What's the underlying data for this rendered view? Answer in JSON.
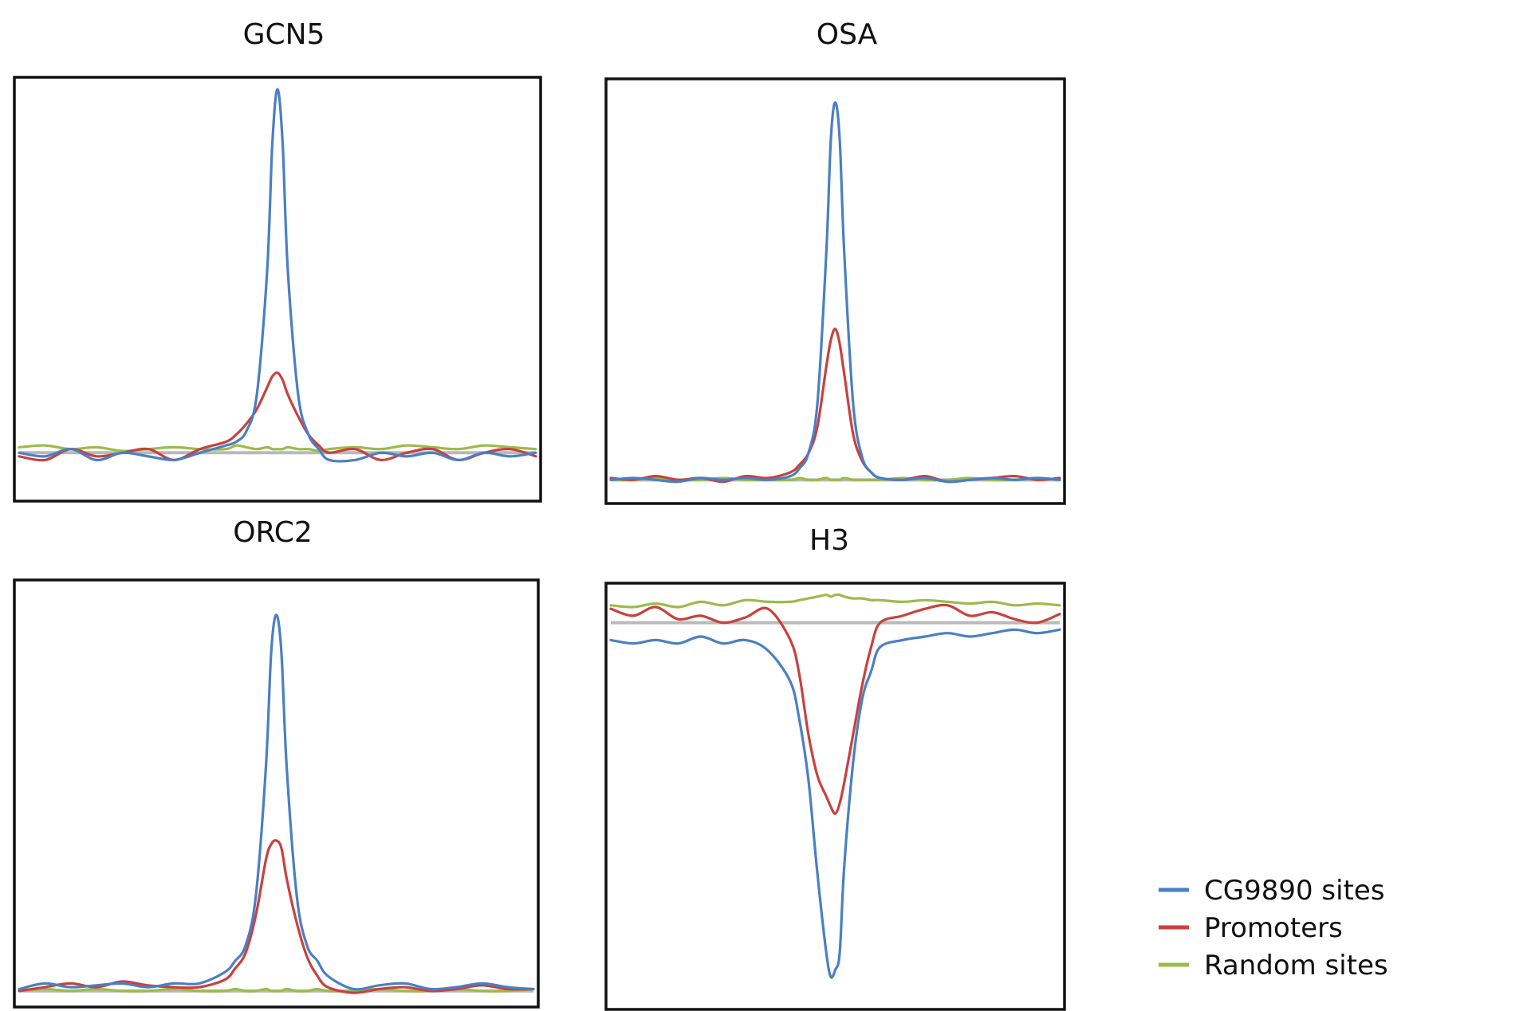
{
  "legend": {
    "items": [
      {
        "label": "CG9890 sites",
        "color": "#4a7fc4"
      },
      {
        "label": "Promoters",
        "color": "#c8413e"
      },
      {
        "label": "Random sites",
        "color": "#9bbb4a"
      }
    ]
  },
  "chart_data": [
    {
      "type": "line",
      "title": "GCN5",
      "xlabel": "",
      "ylabel": "",
      "ylim": [
        -0.12,
        1.02
      ],
      "grid": false,
      "x": [
        -50,
        -45,
        -40,
        -35,
        -30,
        -25,
        -20,
        -15,
        -10,
        -8,
        -6,
        -4,
        -2,
        -1,
        0,
        1,
        2,
        4,
        6,
        8,
        10,
        15,
        20,
        25,
        30,
        35,
        40,
        45,
        50
      ],
      "series": [
        {
          "name": "CG9890 sites",
          "values": [
            0.0,
            -0.01,
            0.01,
            -0.02,
            0.0,
            -0.01,
            -0.02,
            0.0,
            0.02,
            0.03,
            0.06,
            0.16,
            0.5,
            0.85,
            1.0,
            0.85,
            0.5,
            0.16,
            0.05,
            0.01,
            -0.02,
            -0.02,
            0.0,
            -0.01,
            0.0,
            -0.02,
            0.0,
            -0.01,
            0.0
          ]
        },
        {
          "name": "Promoters",
          "values": [
            -0.01,
            -0.02,
            0.01,
            -0.01,
            0.0,
            0.01,
            -0.02,
            0.01,
            0.03,
            0.05,
            0.08,
            0.12,
            0.18,
            0.21,
            0.22,
            0.2,
            0.16,
            0.1,
            0.05,
            0.02,
            0.0,
            0.01,
            -0.02,
            0.0,
            0.01,
            -0.02,
            0.0,
            0.01,
            -0.01
          ]
        },
        {
          "name": "Random sites",
          "values": [
            0.015,
            0.02,
            0.01,
            0.015,
            0.005,
            0.01,
            0.015,
            0.01,
            0.01,
            0.02,
            0.015,
            0.01,
            0.015,
            0.01,
            0.01,
            0.01,
            0.015,
            0.01,
            0.01,
            0.005,
            0.01,
            0.015,
            0.01,
            0.02,
            0.015,
            0.01,
            0.02,
            0.015,
            0.01
          ]
        }
      ]
    },
    {
      "type": "line",
      "title": "OSA",
      "xlabel": "",
      "ylabel": "",
      "ylim": [
        -0.05,
        1.05
      ],
      "grid": false,
      "x": [
        -50,
        -45,
        -40,
        -35,
        -30,
        -25,
        -20,
        -15,
        -10,
        -8,
        -6,
        -4,
        -2,
        -1,
        0,
        1,
        2,
        4,
        6,
        8,
        10,
        15,
        20,
        25,
        30,
        35,
        40,
        45,
        50
      ],
      "series": [
        {
          "name": "CG9890 sites",
          "values": [
            0.0,
            0.005,
            0.0,
            -0.005,
            0.005,
            0.0,
            0.005,
            0.0,
            0.01,
            0.03,
            0.07,
            0.2,
            0.6,
            0.9,
            1.0,
            0.9,
            0.6,
            0.2,
            0.06,
            0.02,
            0.005,
            0.0,
            0.005,
            -0.005,
            0.0,
            0.005,
            0.0,
            0.005,
            0.0
          ]
        },
        {
          "name": "Promoters",
          "values": [
            0.005,
            0.0,
            0.01,
            0.0,
            0.005,
            -0.005,
            0.01,
            0.005,
            0.02,
            0.04,
            0.07,
            0.14,
            0.3,
            0.37,
            0.4,
            0.36,
            0.28,
            0.12,
            0.05,
            0.02,
            0.005,
            0.0,
            0.01,
            -0.005,
            0.0,
            0.005,
            0.01,
            0.0,
            0.005
          ]
        },
        {
          "name": "Random sites",
          "values": [
            0.0,
            0.0,
            0.005,
            0.0,
            0.0,
            0.005,
            0.0,
            0.0,
            0.0,
            0.005,
            0.0,
            0.0,
            0.005,
            0.0,
            0.0,
            0.0,
            0.005,
            0.0,
            0.0,
            0.0,
            0.0,
            0.005,
            0.0,
            0.0,
            0.005,
            0.0,
            0.0,
            0.005,
            0.0
          ]
        }
      ]
    },
    {
      "type": "line",
      "title": "ORC2",
      "xlabel": "",
      "ylabel": "",
      "ylim": [
        -0.03,
        1.08
      ],
      "grid": false,
      "x": [
        -50,
        -45,
        -40,
        -35,
        -30,
        -25,
        -20,
        -15,
        -10,
        -8,
        -6,
        -4,
        -2,
        -1,
        0,
        1,
        2,
        4,
        6,
        8,
        10,
        15,
        20,
        25,
        30,
        35,
        40,
        45,
        50
      ],
      "series": [
        {
          "name": "CG9890 sites",
          "values": [
            0.005,
            0.02,
            0.01,
            0.015,
            0.02,
            0.01,
            0.02,
            0.02,
            0.05,
            0.08,
            0.12,
            0.25,
            0.6,
            0.9,
            1.0,
            0.9,
            0.6,
            0.25,
            0.12,
            0.08,
            0.04,
            0.005,
            0.015,
            0.02,
            0.005,
            0.01,
            0.02,
            0.01,
            0.005
          ]
        },
        {
          "name": "Promoters",
          "values": [
            0.0,
            0.01,
            0.02,
            0.01,
            0.025,
            0.015,
            0.01,
            0.01,
            0.03,
            0.06,
            0.1,
            0.2,
            0.35,
            0.39,
            0.4,
            0.38,
            0.3,
            0.18,
            0.09,
            0.04,
            0.01,
            -0.005,
            0.005,
            0.01,
            0.0,
            0.005,
            0.015,
            0.005,
            0.005
          ]
        },
        {
          "name": "Random sites",
          "values": [
            0.0,
            0.005,
            0.0,
            0.005,
            0.0,
            0.0,
            0.005,
            0.0,
            0.0,
            0.005,
            0.0,
            0.0,
            0.005,
            0.0,
            0.0,
            0.0,
            0.005,
            0.0,
            0.0,
            0.005,
            0.0,
            0.0,
            0.005,
            0.0,
            0.0,
            0.005,
            0.0,
            0.0,
            0.005
          ]
        }
      ]
    },
    {
      "type": "line",
      "title": "H3",
      "xlabel": "",
      "ylabel": "",
      "ylim": [
        -1.1,
        0.1
      ],
      "grid": false,
      "x": [
        -50,
        -45,
        -40,
        -35,
        -30,
        -25,
        -20,
        -15,
        -10,
        -8,
        -6,
        -4,
        -2,
        -1,
        0,
        1,
        2,
        4,
        6,
        8,
        10,
        15,
        20,
        25,
        30,
        35,
        40,
        45,
        50
      ],
      "series": [
        {
          "name": "CG9890 sites",
          "values": [
            -0.05,
            -0.06,
            -0.05,
            -0.06,
            -0.04,
            -0.06,
            -0.05,
            -0.08,
            -0.17,
            -0.28,
            -0.45,
            -0.72,
            -0.95,
            -1.02,
            -1.0,
            -0.95,
            -0.7,
            -0.4,
            -0.22,
            -0.14,
            -0.07,
            -0.05,
            -0.04,
            -0.03,
            -0.04,
            -0.03,
            -0.02,
            -0.03,
            -0.02
          ]
        },
        {
          "name": "Promoters",
          "values": [
            0.04,
            0.02,
            0.045,
            0.01,
            0.02,
            0.0,
            0.015,
            0.04,
            -0.05,
            -0.15,
            -0.32,
            -0.44,
            -0.5,
            -0.53,
            -0.55,
            -0.52,
            -0.46,
            -0.32,
            -0.18,
            -0.07,
            0.0,
            0.02,
            0.04,
            0.05,
            0.02,
            0.03,
            0.01,
            0.0,
            0.025
          ]
        },
        {
          "name": "Random sites",
          "values": [
            0.05,
            0.045,
            0.055,
            0.045,
            0.06,
            0.05,
            0.065,
            0.06,
            0.06,
            0.065,
            0.07,
            0.075,
            0.08,
            0.075,
            0.08,
            0.08,
            0.075,
            0.07,
            0.07,
            0.065,
            0.065,
            0.06,
            0.065,
            0.06,
            0.055,
            0.06,
            0.05,
            0.055,
            0.05
          ]
        }
      ]
    }
  ]
}
